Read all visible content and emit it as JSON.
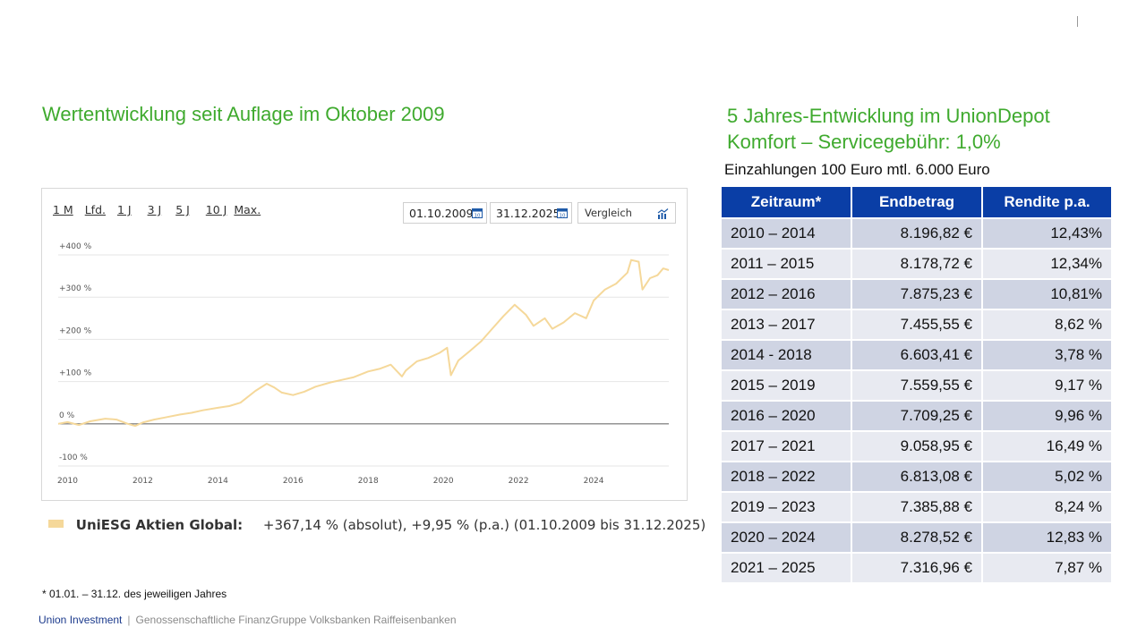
{
  "left_heading": "Wertentwicklung seit Auflage im Oktober 2009",
  "right_heading": [
    "5 Jahres-Entwicklung im UnionDepot",
    "Komfort – Servicegebühr: 1,0%"
  ],
  "deposit_info": "Einzahlungen 100 Euro mtl.  6.000 Euro",
  "chart_controls": {
    "ranges": [
      "1 M",
      "Lfd.",
      "1 J",
      "3 J",
      "5 J",
      "10 J",
      "Max."
    ],
    "date_from": "01.10.2009",
    "date_to": "31.12.2025",
    "compare_label": "Vergleich",
    "calendar_icon_text": "10"
  },
  "chart_data": {
    "type": "line",
    "title": "",
    "xlabel": "",
    "ylabel": "",
    "x_ticks": [
      "2010",
      "2012",
      "2014",
      "2016",
      "2018",
      "2020",
      "2022",
      "2024"
    ],
    "x_range": [
      2009.75,
      2026.0
    ],
    "y_ticks": [
      "+400 %",
      "+300 %",
      "+200 %",
      "+100 %",
      "0 %",
      "-100 %"
    ],
    "y_tick_values": [
      400,
      300,
      200,
      100,
      0,
      -100
    ],
    "ylim": [
      -100,
      400
    ],
    "grid": true,
    "series": [
      {
        "name": "UniESG Aktien Global",
        "color": "#f5d89a",
        "points": [
          [
            2009.75,
            0
          ],
          [
            2010.0,
            4
          ],
          [
            2010.3,
            -3
          ],
          [
            2010.6,
            6
          ],
          [
            2011.0,
            12
          ],
          [
            2011.3,
            10
          ],
          [
            2011.6,
            0
          ],
          [
            2011.8,
            -5
          ],
          [
            2012.0,
            3
          ],
          [
            2012.3,
            10
          ],
          [
            2012.6,
            15
          ],
          [
            2013.0,
            22
          ],
          [
            2013.3,
            26
          ],
          [
            2013.6,
            32
          ],
          [
            2014.0,
            38
          ],
          [
            2014.3,
            42
          ],
          [
            2014.6,
            50
          ],
          [
            2015.0,
            78
          ],
          [
            2015.3,
            95
          ],
          [
            2015.5,
            86
          ],
          [
            2015.7,
            74
          ],
          [
            2016.0,
            68
          ],
          [
            2016.3,
            76
          ],
          [
            2016.6,
            88
          ],
          [
            2017.0,
            98
          ],
          [
            2017.3,
            104
          ],
          [
            2017.6,
            110
          ],
          [
            2018.0,
            124
          ],
          [
            2018.3,
            130
          ],
          [
            2018.6,
            140
          ],
          [
            2018.9,
            112
          ],
          [
            2019.0,
            126
          ],
          [
            2019.3,
            148
          ],
          [
            2019.6,
            156
          ],
          [
            2019.9,
            168
          ],
          [
            2020.1,
            180
          ],
          [
            2020.2,
            115
          ],
          [
            2020.4,
            150
          ],
          [
            2020.7,
            172
          ],
          [
            2021.0,
            195
          ],
          [
            2021.3,
            225
          ],
          [
            2021.6,
            255
          ],
          [
            2021.9,
            282
          ],
          [
            2022.2,
            258
          ],
          [
            2022.4,
            232
          ],
          [
            2022.7,
            250
          ],
          [
            2022.9,
            225
          ],
          [
            2023.2,
            240
          ],
          [
            2023.5,
            262
          ],
          [
            2023.8,
            250
          ],
          [
            2024.0,
            292
          ],
          [
            2024.3,
            318
          ],
          [
            2024.6,
            332
          ],
          [
            2024.9,
            358
          ],
          [
            2025.0,
            388
          ],
          [
            2025.2,
            384
          ],
          [
            2025.3,
            318
          ],
          [
            2025.5,
            345
          ],
          [
            2025.7,
            352
          ],
          [
            2025.85,
            368
          ],
          [
            2026.0,
            364
          ]
        ]
      }
    ]
  },
  "legend": {
    "name": "UniESG Aktien Global:",
    "text": "+367,14 % (absolut), +9,95 % (p.a.) (01.10.2009 bis 31.12.2025)"
  },
  "table": {
    "headers": [
      "Zeitraum*",
      "Endbetrag",
      "Rendite p.a."
    ],
    "rows": [
      [
        "2010 – 2014",
        "8.196,82 €",
        "12,43%"
      ],
      [
        "2011 – 2015",
        "8.178,72 €",
        "12,34%"
      ],
      [
        "2012 – 2016",
        "7.875,23 €",
        "10,81%"
      ],
      [
        "2013 – 2017",
        "7.455,55 €",
        "8,62 %"
      ],
      [
        "2014 - 2018",
        "6.603,41 €",
        "3,78 %"
      ],
      [
        "2015 – 2019",
        "7.559,55 €",
        "9,17 %"
      ],
      [
        "2016 – 2020",
        "7.709,25 €",
        "9,96 %"
      ],
      [
        "2017 – 2021",
        "9.058,95 €",
        "16,49 %"
      ],
      [
        "2018 – 2022",
        "6.813,08 €",
        "5,02 %"
      ],
      [
        "2019 – 2023",
        "7.385,88 €",
        "8,24 %"
      ],
      [
        "2020 – 2024",
        "8.278,52 €",
        "12,83 %"
      ],
      [
        "2021 – 2025",
        "7.316,96 €",
        "7,87 %"
      ]
    ]
  },
  "footnote": "* 01.01. – 31.12. des jeweiligen Jahres",
  "footer": {
    "brand": "Union Investment",
    "separator": "|",
    "org": "Genossenschaftliche FinanzGruppe Volksbanken Raiffeisenbanken"
  }
}
